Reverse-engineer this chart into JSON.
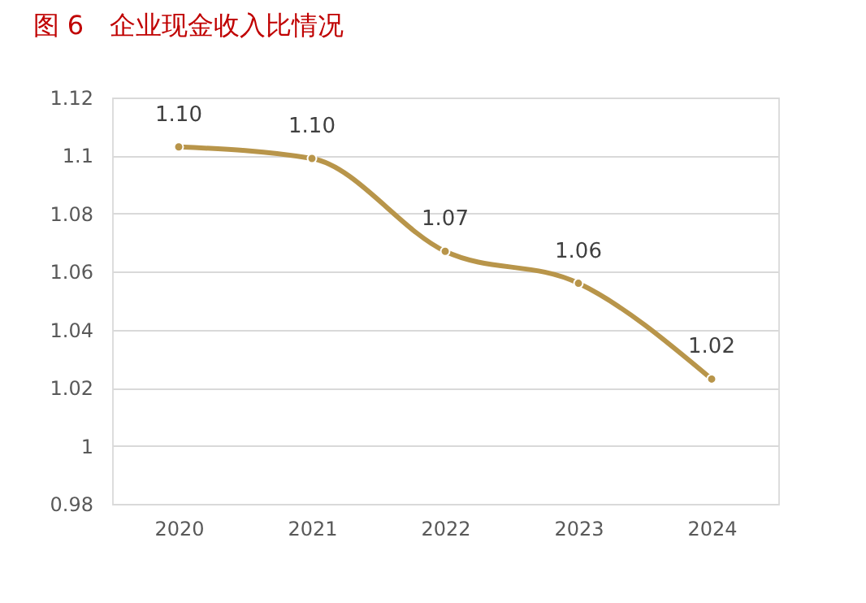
{
  "chart_data": {
    "type": "line",
    "title": "图 6　企业现金收入比情况",
    "categories": [
      "2020",
      "2021",
      "2022",
      "2023",
      "2024"
    ],
    "series": [
      {
        "color": "#b8954a",
        "values": [
          1.103,
          1.099,
          1.067,
          1.056,
          1.023
        ],
        "value_labels": [
          "1.10",
          "1.10",
          "1.07",
          "1.06",
          "1.02"
        ]
      }
    ],
    "ylim": [
      0.98,
      1.12
    ],
    "yticks": [
      0.98,
      1,
      1.02,
      1.04,
      1.06,
      1.08,
      1.1,
      1.12
    ],
    "grid": "y",
    "marker": "circle",
    "line_style": "solid"
  }
}
